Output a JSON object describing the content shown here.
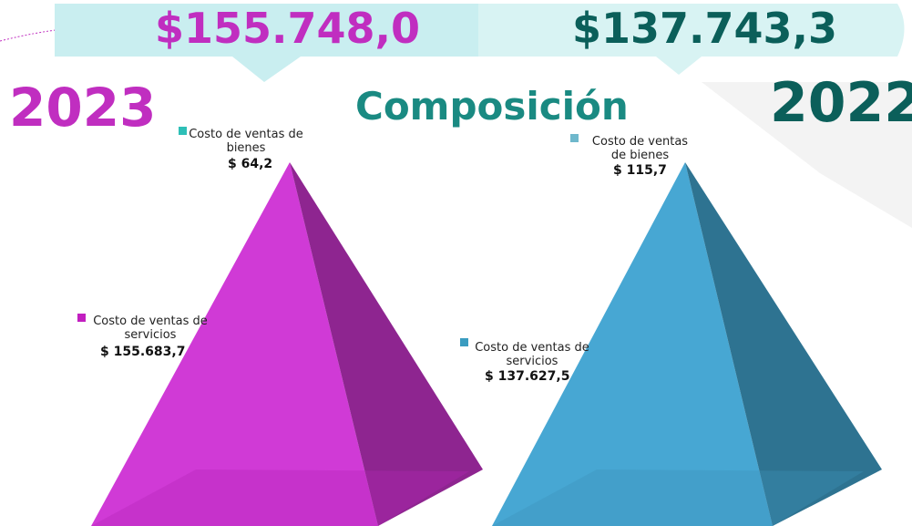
{
  "header": {
    "title": "Composición",
    "totals": [
      "$155.748,0",
      "$137.743,3"
    ],
    "years": [
      "2023",
      "2022"
    ]
  },
  "chart_data": [
    {
      "type": "pyramid",
      "categories": [
        "Costo de ventas de bienes",
        "Costo de ventas de servicios"
      ],
      "values": [
        64.2,
        155683.7
      ],
      "value_labels": [
        "$ 64,2",
        "$ 155.683,7"
      ],
      "colors": [
        "#2ebfb7",
        "#c21fc0"
      ]
    },
    {
      "type": "pyramid",
      "categories": [
        "Costo de ventas de bienes",
        "Costo de ventas de servicios"
      ],
      "values": [
        115.7,
        137627.5
      ],
      "value_labels": [
        "$ 115,7",
        "$ 137.627,5"
      ],
      "colors": [
        "#6fb8cc",
        "#3a9cc0"
      ]
    }
  ]
}
